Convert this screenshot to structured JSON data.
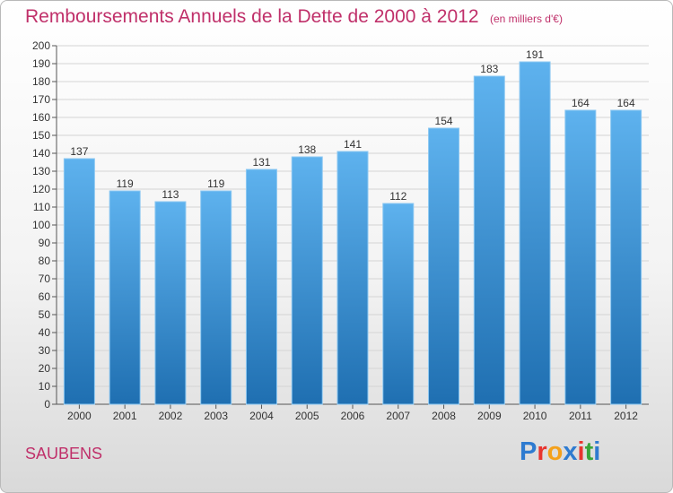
{
  "header": {
    "title": "Remboursements Annuels de la Dette de 2000 à 2012",
    "unit": "(en milliers d'€)"
  },
  "footer": {
    "town": "SAUBENS",
    "logo_letters": [
      "P",
      "r",
      "o",
      "x",
      "i",
      "t",
      "i"
    ],
    "logo_colors": [
      "#2e7bd0",
      "#e8352f",
      "#f4a11b",
      "#2e7bd0",
      "#e8352f",
      "#3aa53a",
      "#2e7bd0"
    ]
  },
  "colors": {
    "bar_top": "#5eb2ee",
    "bar_bottom": "#1f6fb1",
    "title": "#c0306a",
    "grid": "#d4d4d4"
  },
  "chart_data": {
    "type": "bar",
    "title": "Remboursements Annuels de la Dette de 2000 à 2012",
    "ylabel": "",
    "xlabel": "",
    "categories": [
      "2000",
      "2001",
      "2002",
      "2003",
      "2004",
      "2005",
      "2006",
      "2007",
      "2008",
      "2009",
      "2010",
      "2011",
      "2012"
    ],
    "values": [
      137,
      119,
      113,
      119,
      131,
      138,
      141,
      112,
      154,
      183,
      191,
      164,
      164
    ],
    "ylim": [
      0,
      200
    ],
    "yticks": [
      0,
      10,
      20,
      30,
      40,
      50,
      60,
      70,
      80,
      90,
      100,
      110,
      120,
      130,
      140,
      150,
      160,
      170,
      180,
      190,
      200
    ],
    "grid": true,
    "legend": "none"
  }
}
